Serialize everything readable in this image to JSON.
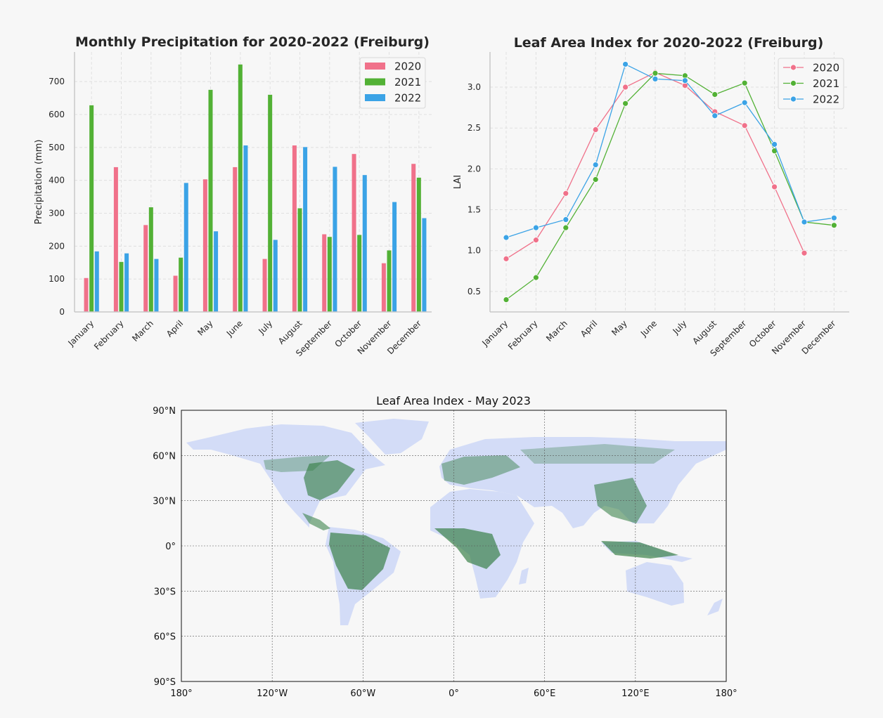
{
  "colors": {
    "y2020": "#f0718a",
    "y2021": "#52b135",
    "y2022": "#3ba3e6",
    "map_water": "#f7f7f7",
    "map_land_low": "#d3dcf7",
    "map_land_high": "#2e7a3e"
  },
  "chart_data": [
    {
      "type": "bar",
      "title": "Monthly Precipitation for 2020-2022 (Freiburg)",
      "xlabel": "",
      "ylabel": "Precipitation (mm)",
      "categories": [
        "January",
        "February",
        "March",
        "April",
        "May",
        "June",
        "July",
        "August",
        "September",
        "October",
        "November",
        "December"
      ],
      "series": [
        {
          "name": "2020",
          "color": "#f0718a",
          "values": [
            103,
            440,
            264,
            110,
            403,
            440,
            161,
            506,
            236,
            480,
            148,
            450
          ]
        },
        {
          "name": "2021",
          "color": "#52b135",
          "values": [
            628,
            152,
            318,
            165,
            675,
            752,
            660,
            315,
            228,
            234,
            187,
            408
          ]
        },
        {
          "name": "2022",
          "color": "#3ba3e6",
          "values": [
            184,
            178,
            161,
            392,
            245,
            506,
            219,
            501,
            441,
            416,
            334,
            285
          ]
        }
      ],
      "ylim": [
        0,
        790
      ],
      "yticks": [
        0,
        100,
        200,
        300,
        400,
        500,
        600,
        700
      ],
      "grid": true,
      "legend": "top-right"
    },
    {
      "type": "line",
      "title": "Leaf Area Index for 2020-2022 (Freiburg)",
      "xlabel": "",
      "ylabel": "LAI",
      "categories": [
        "January",
        "February",
        "March",
        "April",
        "May",
        "June",
        "July",
        "August",
        "September",
        "October",
        "November",
        "December"
      ],
      "series": [
        {
          "name": "2020",
          "color": "#f0718a",
          "values": [
            0.9,
            1.13,
            1.7,
            2.48,
            3.0,
            3.18,
            3.02,
            2.7,
            2.53,
            1.78,
            0.97,
            null
          ]
        },
        {
          "name": "2021",
          "color": "#52b135",
          "values": [
            0.4,
            0.67,
            1.28,
            1.87,
            2.8,
            3.17,
            3.14,
            2.91,
            3.05,
            2.22,
            1.35,
            1.31
          ]
        },
        {
          "name": "2022",
          "color": "#3ba3e6",
          "values": [
            1.16,
            1.28,
            1.38,
            2.05,
            3.28,
            3.1,
            3.08,
            2.65,
            2.81,
            2.3,
            1.35,
            1.4
          ]
        }
      ],
      "ylim": [
        0.25,
        3.43
      ],
      "yticks": [
        "0.5",
        "1.0",
        "1.5",
        "2.0",
        "2.5",
        "3.0"
      ],
      "grid": true,
      "legend": "top-right"
    },
    {
      "type": "heatmap",
      "title": "Leaf Area Index - May 2023",
      "projection": "PlateCarree",
      "lat_labels": [
        "90°N",
        "60°N",
        "30°N",
        "0°",
        "30°S",
        "60°S",
        "90°S"
      ],
      "lon_labels": [
        "180°",
        "120°W",
        "60°W",
        "0°",
        "60°E",
        "120°E",
        "180°"
      ],
      "lat_values": [
        90,
        60,
        30,
        0,
        -30,
        -60,
        -90
      ],
      "lon_values": [
        -180,
        -120,
        -60,
        0,
        60,
        120,
        180
      ],
      "xlim": [
        -180,
        180
      ],
      "ylim": [
        -90,
        90
      ],
      "gridlines": true
    }
  ]
}
